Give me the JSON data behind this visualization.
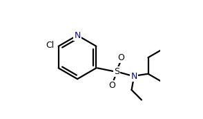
{
  "background_color": "#ffffff",
  "atom_color": "#000000",
  "n_color": "#0000cd",
  "line_color": "#000000",
  "line_width": 1.6,
  "figsize": [
    2.94,
    1.72
  ],
  "dpi": 100,
  "xlim": [
    0.0,
    1.0
  ],
  "ylim": [
    0.0,
    1.0
  ]
}
